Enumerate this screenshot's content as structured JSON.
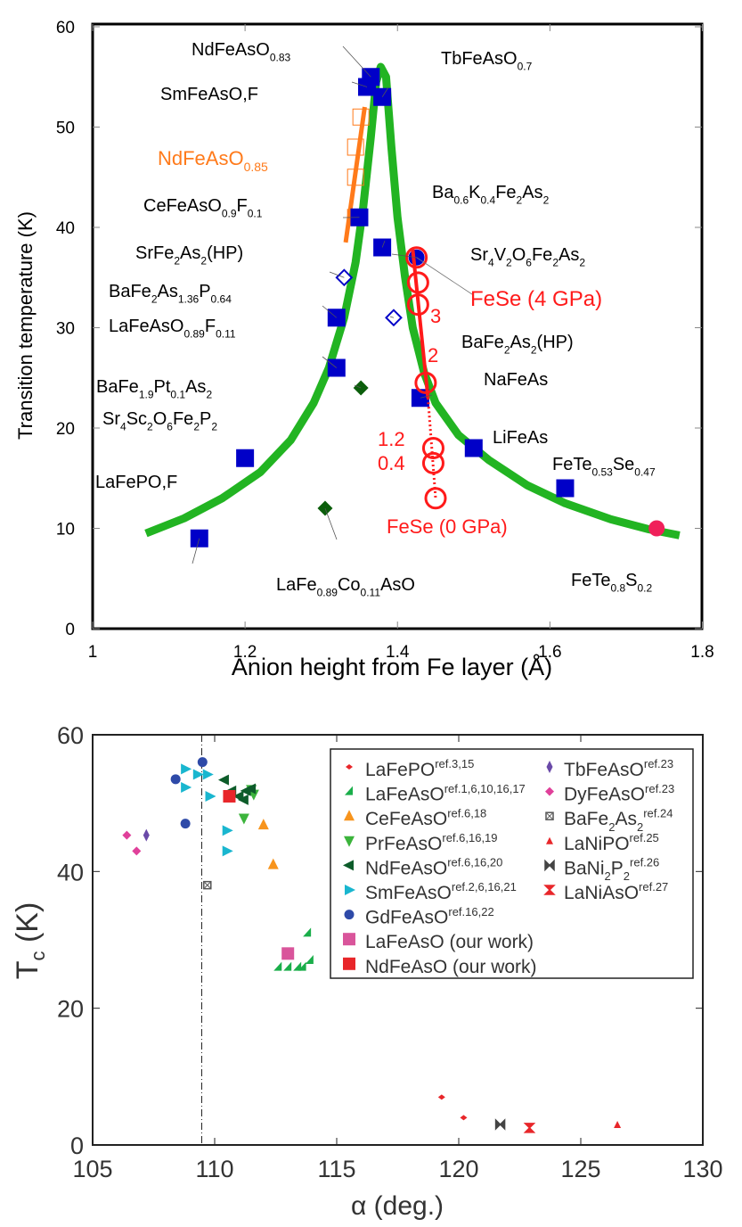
{
  "chart_data": [
    {
      "type": "scatter",
      "xlabel": "Anion height from Fe layer (Å)",
      "ylabel": "Transition temperature (K)",
      "xlim": [
        1,
        1.8
      ],
      "ylim": [
        0,
        60
      ],
      "xticks": [
        "1",
        "1.2",
        "1.4",
        "1.6",
        "1.8"
      ],
      "yticks": [
        "0",
        "10",
        "20",
        "30",
        "40",
        "50",
        "60"
      ],
      "grid": false,
      "colors": {
        "square": "#0000c8",
        "fit": "#22b422",
        "fese": "#ff1a1a",
        "orange": "#ff7a1a",
        "diamond_dark": "#0b5e0b",
        "pink": "#f0205a"
      },
      "fit_curve": [
        [
          1.07,
          9.5
        ],
        [
          1.12,
          11
        ],
        [
          1.17,
          13
        ],
        [
          1.22,
          15.6
        ],
        [
          1.26,
          18.8
        ],
        [
          1.29,
          22.5
        ],
        [
          1.31,
          26
        ],
        [
          1.33,
          31
        ],
        [
          1.345,
          36.5
        ],
        [
          1.355,
          42
        ],
        [
          1.365,
          49
        ],
        [
          1.372,
          54.5
        ],
        [
          1.378,
          56
        ],
        [
          1.385,
          55
        ],
        [
          1.392,
          48
        ],
        [
          1.4,
          41
        ],
        [
          1.41,
          35
        ],
        [
          1.42,
          30
        ],
        [
          1.435,
          25.5
        ],
        [
          1.45,
          22.5
        ],
        [
          1.48,
          19.3
        ],
        [
          1.52,
          16.8
        ],
        [
          1.57,
          14.3
        ],
        [
          1.62,
          12.5
        ],
        [
          1.68,
          10.9
        ],
        [
          1.73,
          9.9
        ],
        [
          1.77,
          9.3
        ]
      ],
      "points": [
        {
          "id": "ndfeaso083",
          "marker": "square",
          "x": 1.365,
          "y": 55,
          "label": [
            {
              "t": "NdFeAsO"
            },
            {
              "s": "0.83"
            }
          ]
        },
        {
          "id": "smfeasof",
          "marker": "square",
          "x": 1.36,
          "y": 54,
          "label": [
            {
              "t": "SmFeAsO,F"
            }
          ]
        },
        {
          "id": "tbfeaso07",
          "marker": "square",
          "x": 1.38,
          "y": 53,
          "label": [
            {
              "t": "TbFeAsO"
            },
            {
              "s": "0.7"
            }
          ]
        },
        {
          "id": "cefeaso",
          "marker": "square",
          "x": 1.35,
          "y": 41,
          "label": [
            {
              "t": "CeFeAsO"
            },
            {
              "s": "0.9"
            },
            {
              "t": "F"
            },
            {
              "s": "0.1"
            }
          ]
        },
        {
          "id": "bak",
          "marker": "square",
          "x": 1.38,
          "y": 38,
          "label": [
            {
              "t": "Ba"
            },
            {
              "s": "0.6"
            },
            {
              "t": "K"
            },
            {
              "s": "0.4"
            },
            {
              "t": "Fe"
            },
            {
              "s": "2"
            },
            {
              "t": "As"
            },
            {
              "s": "2"
            }
          ]
        },
        {
          "id": "srv",
          "marker": "circle",
          "x": 1.425,
          "y": 37,
          "label": [
            {
              "t": "Sr"
            },
            {
              "s": "4"
            },
            {
              "t": "V"
            },
            {
              "s": "2"
            },
            {
              "t": "O"
            },
            {
              "s": "6"
            },
            {
              "t": "Fe"
            },
            {
              "s": "2"
            },
            {
              "t": "As"
            },
            {
              "s": "2"
            }
          ]
        },
        {
          "id": "srhp",
          "marker": "open-diamond",
          "x": 1.33,
          "y": 35,
          "label": [
            {
              "t": "SrFe"
            },
            {
              "s": "2"
            },
            {
              "t": "As"
            },
            {
              "s": "2"
            },
            {
              "t": "(HP)"
            }
          ]
        },
        {
          "id": "bap",
          "marker": "square",
          "x": 1.32,
          "y": 31,
          "label": [
            {
              "t": "BaFe"
            },
            {
              "s": "2"
            },
            {
              "t": "As"
            },
            {
              "s": "1.36"
            },
            {
              "t": "P"
            },
            {
              "s": "0.64"
            }
          ]
        },
        {
          "id": "bahp",
          "marker": "open-diamond",
          "x": 1.395,
          "y": 31,
          "label": [
            {
              "t": "BaFe"
            },
            {
              "s": "2"
            },
            {
              "t": "As"
            },
            {
              "s": "2"
            },
            {
              "t": "(HP)"
            }
          ]
        },
        {
          "id": "lafeasof",
          "marker": "square",
          "x": 1.32,
          "y": 26,
          "label": [
            {
              "t": "LaFeAsO"
            },
            {
              "s": "0.89"
            },
            {
              "t": "F"
            },
            {
              "s": "0.11"
            }
          ]
        },
        {
          "id": "bapt",
          "marker": "dark-diamond",
          "x": 1.352,
          "y": 24,
          "label": [
            {
              "t": "BaFe"
            },
            {
              "s": "1.9"
            },
            {
              "t": "Pt"
            },
            {
              "s": "0.1"
            },
            {
              "t": "As"
            },
            {
              "s": "2"
            }
          ]
        },
        {
          "id": "nafeas",
          "marker": "square",
          "x": 1.43,
          "y": 23,
          "label": [
            {
              "t": "NaFeAs"
            }
          ]
        },
        {
          "id": "srsc",
          "marker": "square",
          "x": 1.2,
          "y": 17,
          "label": [
            {
              "t": "Sr"
            },
            {
              "s": "4"
            },
            {
              "t": "Sc"
            },
            {
              "s": "2"
            },
            {
              "t": "O"
            },
            {
              "s": "6"
            },
            {
              "t": "Fe"
            },
            {
              "s": "2"
            },
            {
              "t": "P"
            },
            {
              "s": "2"
            }
          ]
        },
        {
          "id": "lifeas",
          "marker": "square",
          "x": 1.5,
          "y": 18,
          "label": [
            {
              "t": "LiFeAs"
            }
          ]
        },
        {
          "id": "fetese",
          "marker": "square",
          "x": 1.62,
          "y": 14,
          "label": [
            {
              "t": "FeTe"
            },
            {
              "s": "0.53"
            },
            {
              "t": "Se"
            },
            {
              "s": "0.47"
            }
          ]
        },
        {
          "id": "lafeco",
          "marker": "dark-diamond",
          "x": 1.305,
          "y": 12,
          "label": [
            {
              "t": "LaFe"
            },
            {
              "s": "0.89"
            },
            {
              "t": "Co"
            },
            {
              "s": "0.11"
            },
            {
              "t": "AsO"
            }
          ]
        },
        {
          "id": "lafepof",
          "marker": "square",
          "x": 1.14,
          "y": 9,
          "label": [
            {
              "t": "LaFePO,F"
            }
          ]
        },
        {
          "id": "fetes",
          "marker": "pink-circle",
          "x": 1.74,
          "y": 10,
          "label": [
            {
              "t": "FeTe"
            },
            {
              "s": "0.8"
            },
            {
              "t": "S"
            },
            {
              "s": "0.2"
            }
          ]
        }
      ],
      "ndfeaso085": {
        "label": [
          {
            "t": "NdFeAsO"
          },
          {
            "s": "0.85"
          }
        ],
        "points": [
          [
            1.352,
            51
          ],
          [
            1.345,
            48
          ],
          [
            1.345,
            45
          ],
          [
            1.345,
            41
          ]
        ],
        "trend": [
          [
            1.332,
            38.5
          ],
          [
            1.357,
            52
          ]
        ]
      },
      "fese": {
        "label_high": "FeSe (4 GPa)",
        "label_low": "FeSe (0 GPa)",
        "points": [
          {
            "x": 1.425,
            "y": 37,
            "pressure": "4"
          },
          {
            "x": 1.427,
            "y": 34.5,
            "pressure": ""
          },
          {
            "x": 1.427,
            "y": 32.3,
            "pressure": "3"
          },
          {
            "x": 1.437,
            "y": 24.5,
            "pressure": "2"
          },
          {
            "x": 1.447,
            "y": 18,
            "pressure": "1.2"
          },
          {
            "x": 1.447,
            "y": 16.5,
            "pressure": "0.4"
          },
          {
            "x": 1.45,
            "y": 13,
            "pressure": "0"
          }
        ],
        "trend_solid": [
          [
            1.42,
            37.8
          ],
          [
            1.44,
            23
          ]
        ],
        "trend_dotted": [
          [
            1.44,
            23
          ],
          [
            1.45,
            13
          ]
        ]
      }
    },
    {
      "type": "scatter",
      "xlabel": "α (deg.)",
      "ylabel": "Tc (K)",
      "ylabel_main": "T",
      "ylabel_sub": "c",
      "ylabel_unit": " (K)",
      "xlim": [
        105,
        130
      ],
      "ylim": [
        0,
        60
      ],
      "xticks": [
        "105",
        "110",
        "115",
        "120",
        "125",
        "130"
      ],
      "yticks": [
        "0",
        "20",
        "40",
        "60"
      ],
      "grid": false,
      "legend_position": "top-right",
      "reference_line_x": 109.47,
      "series": [
        {
          "name": [
            {
              "t": "LaFePO"
            },
            {
              "p": "ref.3,15"
            }
          ],
          "marker": "small-diamond",
          "color": "#e8262a",
          "points": [
            [
              119.3,
              7
            ],
            [
              120.2,
              4
            ]
          ]
        },
        {
          "name": [
            {
              "t": "LaFeAsO"
            },
            {
              "p": "ref.1,6,10,16,17"
            }
          ],
          "marker": "half-triangle",
          "color": "#1aae4a",
          "points": [
            [
              113.8,
              31
            ],
            [
              112.6,
              26
            ],
            [
              113.0,
              26
            ],
            [
              113.4,
              26
            ],
            [
              113.6,
              26
            ],
            [
              113.9,
              27
            ]
          ]
        },
        {
          "name": [
            {
              "t": "CeFeAsO"
            },
            {
              "p": "ref.6,18"
            }
          ],
          "marker": "triangle-up",
          "color": "#f7941d",
          "points": [
            [
              112.0,
              46.8
            ],
            [
              112.4,
              41
            ]
          ]
        },
        {
          "name": [
            {
              "t": "PrFeAsO"
            },
            {
              "p": "ref.6,16,19"
            }
          ],
          "marker": "triangle-down",
          "color": "#3cb43c",
          "points": [
            [
              111.2,
              47.8
            ],
            [
              111.6,
              51.3
            ],
            [
              111.5,
              52
            ]
          ]
        },
        {
          "name": [
            {
              "t": "NdFeAsO"
            },
            {
              "p": "ref.6,16,20"
            }
          ],
          "marker": "triangle-left",
          "color": "#0d5c2a",
          "points": [
            [
              110.4,
              53.4
            ],
            [
              110.7,
              51.8
            ],
            [
              111.0,
              51
            ],
            [
              111.2,
              50.5
            ],
            [
              111.3,
              51.8
            ],
            [
              111.5,
              52.1
            ]
          ]
        },
        {
          "name": [
            {
              "t": "SmFeAsO"
            },
            {
              "p": "ref.2,6,16,21"
            }
          ],
          "marker": "triangle-right",
          "color": "#19b6cf",
          "points": [
            [
              108.8,
              55
            ],
            [
              108.8,
              52.3
            ],
            [
              109.3,
              54.2
            ],
            [
              109.7,
              54.2
            ],
            [
              109.8,
              51
            ],
            [
              110.5,
              46
            ],
            [
              110.5,
              43
            ]
          ]
        },
        {
          "name": [
            {
              "t": "GdFeAsO"
            },
            {
              "p": "ref.16,22"
            }
          ],
          "marker": "circle",
          "color": "#2e4aa8",
          "points": [
            [
              109.5,
              56
            ],
            [
              108.4,
              53.5
            ],
            [
              108.8,
              47
            ]
          ]
        },
        {
          "name": [
            {
              "t": "LaFeAsO (our work)"
            }
          ],
          "marker": "square",
          "color": "#d9559b",
          "points": [
            [
              113.0,
              28
            ]
          ]
        },
        {
          "name": [
            {
              "t": "NdFeAsO (our work)"
            }
          ],
          "marker": "square",
          "color": "#e8262a",
          "points": [
            [
              110.6,
              51
            ]
          ]
        },
        {
          "name": [
            {
              "t": "TbFeAsO"
            },
            {
              "p": "ref.23"
            }
          ],
          "marker": "thin-diamond",
          "color": "#6a4aa8",
          "points": [
            [
              107.2,
              45.3
            ]
          ]
        },
        {
          "name": [
            {
              "t": "DyFeAsO"
            },
            {
              "p": "ref.23"
            }
          ],
          "marker": "diamond",
          "color": "#e0409a",
          "points": [
            [
              106.4,
              45.3
            ],
            [
              106.8,
              43
            ]
          ]
        },
        {
          "name": [
            {
              "t": "BaFe"
            },
            {
              "s": "2"
            },
            {
              "t": "As"
            },
            {
              "s": "2"
            },
            {
              "p": "ref.24"
            }
          ],
          "marker": "boxed-x",
          "color": "#555555",
          "points": [
            [
              109.7,
              38
            ]
          ]
        },
        {
          "name": [
            {
              "t": "LaNiPO"
            },
            {
              "p": "ref.25"
            }
          ],
          "marker": "small-triangle",
          "color": "#e8262a",
          "points": [
            [
              126.5,
              3
            ]
          ]
        },
        {
          "name": [
            {
              "t": "BaNi"
            },
            {
              "s": "2"
            },
            {
              "t": "P"
            },
            {
              "s": "2"
            },
            {
              "p": "ref.26"
            }
          ],
          "marker": "bowtie",
          "color": "#444444",
          "points": [
            [
              121.7,
              3
            ]
          ]
        },
        {
          "name": [
            {
              "t": "LaNiAsO"
            },
            {
              "p": "ref.27"
            }
          ],
          "marker": "hourglass",
          "color": "#e8262a",
          "points": [
            [
              122.9,
              2.5
            ]
          ]
        }
      ]
    }
  ]
}
